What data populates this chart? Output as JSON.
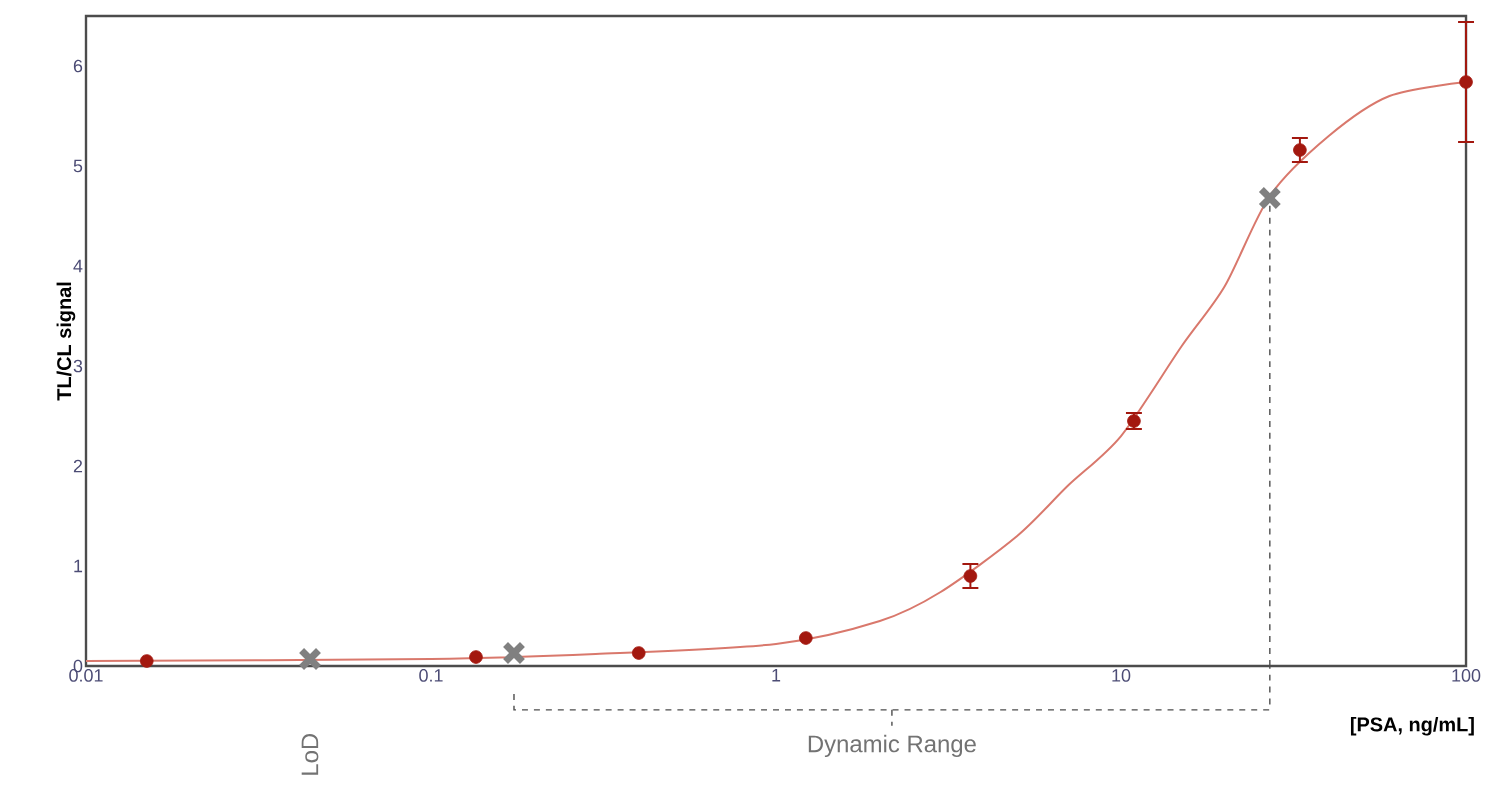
{
  "chart_data": {
    "type": "scatter",
    "ylabel": "TL/CL signal",
    "xlabel": "[PSA, ng/mL]",
    "log": "x",
    "xlim": [
      0.01,
      100
    ],
    "xticks": [
      0.01,
      0.1,
      1,
      10,
      100
    ],
    "ylim": [
      0,
      6.5
    ],
    "yticks": [
      0,
      1,
      2,
      3,
      4,
      5,
      6
    ],
    "series": [
      {
        "type": "line",
        "color": "#d9786c",
        "marker": "none",
        "x": [
          0.01,
          0.1,
          0.3,
          1,
          2,
          3,
          5,
          7,
          10,
          15,
          20,
          27,
          40,
          60,
          100
        ],
        "values": [
          0.05,
          0.07,
          0.12,
          0.22,
          0.45,
          0.74,
          1.3,
          1.8,
          2.3,
          3.2,
          3.8,
          4.7,
          5.3,
          5.7,
          5.84
        ]
      },
      {
        "color": "#a3180f",
        "marker": "circle",
        "x": [
          0.015,
          0.135,
          0.4,
          1.22,
          3.66,
          10.9,
          33,
          100
        ],
        "values": [
          0.05,
          0.09,
          0.13,
          0.28,
          0.9,
          2.45,
          5.16,
          5.84
        ],
        "errors": [
          null,
          null,
          null,
          null,
          0.12,
          0.08,
          0.12,
          0.6
        ]
      },
      {
        "color": "#808080",
        "marker": "cross",
        "x": [
          0.0446,
          0.174,
          27
        ],
        "values": [
          0.07,
          0.13,
          4.68
        ]
      }
    ],
    "ref_lines": [
      {
        "axis": "x",
        "value": 27,
        "line_style": "dashed",
        "color": "#4c4c4c"
      }
    ],
    "annotations": [
      "LoD",
      "Dynamic Range"
    ]
  }
}
